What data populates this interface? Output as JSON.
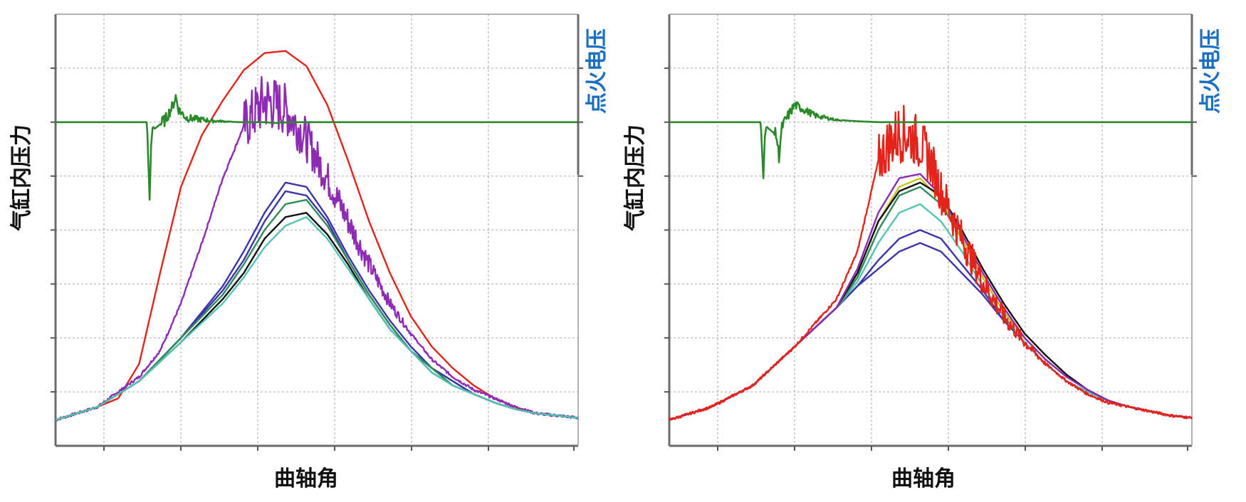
{
  "chart_data": [
    {
      "type": "line",
      "panel": "left",
      "xlabel": "曲轴角",
      "ylabel": "气缸内压力",
      "y2label": "点火电压",
      "grid": true,
      "xlim": [
        0,
        100
      ],
      "ylim": [
        0,
        100
      ],
      "colors": {
        "pressure_red": "#e3241b",
        "pressure_purple": "#8e2bb5",
        "pressure_blue": "#3a35a8",
        "pressure_green": "#2e8b57",
        "pressure_teal": "#52c4b4",
        "pressure_black": "#111111",
        "ignition_voltage": "#2a8a2a"
      },
      "series": [
        {
          "color": "pressure_red",
          "x": [
            0,
            8,
            12,
            16,
            20,
            24,
            28,
            32,
            36,
            40,
            44,
            48,
            52,
            56,
            60,
            64,
            68,
            72,
            76,
            80,
            84,
            88,
            92,
            96,
            100
          ],
          "y": [
            6,
            9,
            11,
            19,
            40,
            60,
            72,
            80,
            87,
            91,
            91.5,
            88,
            79,
            66,
            52,
            40,
            30,
            23,
            18,
            14,
            11,
            9,
            7.5,
            7,
            6.5
          ]
        },
        {
          "color": "pressure_purple",
          "noisy_peak": true,
          "x": [
            0,
            8,
            16,
            20,
            24,
            28,
            32,
            36,
            40,
            44,
            48,
            52,
            56,
            60,
            64,
            68,
            72,
            76,
            80,
            84,
            88,
            92,
            96,
            100
          ],
          "y": [
            6,
            9,
            16,
            22,
            33,
            47,
            62,
            74,
            80,
            78,
            71,
            62,
            52,
            42,
            33,
            26,
            20,
            16,
            13,
            11,
            9,
            7.5,
            7,
            6.5
          ]
        },
        {
          "color": "pressure_blue",
          "x": [
            0,
            8,
            16,
            24,
            32,
            36,
            40,
            44,
            48,
            52,
            56,
            60,
            64,
            68,
            72,
            76,
            80,
            84,
            88,
            92,
            96,
            100
          ],
          "y": [
            6,
            9,
            15,
            25,
            37,
            45,
            54,
            61,
            60,
            53,
            44,
            36,
            29,
            23,
            18,
            15,
            12,
            10,
            8.5,
            7.5,
            7,
            6.5
          ]
        },
        {
          "color": "pressure_blue",
          "x": [
            0,
            8,
            16,
            24,
            32,
            36,
            40,
            44,
            48,
            52,
            56,
            60,
            64,
            68,
            72,
            76,
            80,
            84,
            88,
            92,
            96,
            100
          ],
          "y": [
            6,
            9,
            15,
            25,
            36,
            43,
            52,
            59,
            58,
            52,
            43,
            35,
            28,
            22,
            18,
            15,
            12,
            10,
            8.5,
            7.5,
            7,
            6.5
          ]
        },
        {
          "color": "pressure_green",
          "x": [
            0,
            8,
            16,
            24,
            32,
            36,
            40,
            44,
            48,
            52,
            56,
            60,
            64,
            68,
            72,
            76,
            80,
            84,
            88,
            92,
            96,
            100
          ],
          "y": [
            6,
            9,
            15,
            25,
            35,
            42,
            50,
            56,
            57,
            51,
            43,
            35,
            28,
            22,
            18,
            14,
            12,
            10,
            8.5,
            7.5,
            7,
            6.5
          ]
        },
        {
          "color": "pressure_black",
          "x": [
            0,
            8,
            16,
            24,
            32,
            36,
            40,
            44,
            48,
            52,
            56,
            60,
            64,
            68,
            72,
            76,
            80,
            84,
            88,
            92,
            96,
            100
          ],
          "y": [
            6,
            9,
            15,
            24,
            34,
            40,
            48,
            53,
            54,
            49,
            42,
            34,
            27,
            22,
            17,
            14,
            12,
            10,
            8.5,
            7.5,
            7,
            6.5
          ]
        },
        {
          "color": "pressure_teal",
          "x": [
            0,
            8,
            16,
            24,
            32,
            36,
            40,
            44,
            48,
            52,
            56,
            60,
            64,
            68,
            72,
            76,
            80,
            84,
            88,
            92,
            96,
            100
          ],
          "y": [
            6,
            9,
            15,
            24,
            33,
            39,
            46,
            51,
            53,
            48,
            41,
            34,
            27,
            22,
            17,
            14,
            12,
            10,
            8.5,
            7.5,
            7,
            6.5
          ]
        },
        {
          "color": "ignition_voltage",
          "ignition": true,
          "x": [
            0,
            17.5,
            18,
            18.3,
            18.6,
            19,
            21,
            22.5,
            23,
            23.5,
            25,
            30,
            35,
            40,
            42,
            45,
            60,
            80,
            100
          ],
          "y": [
            75,
            75,
            57,
            70,
            74,
            73.5,
            75.5,
            79,
            81,
            78,
            76,
            75.3,
            75,
            75,
            74.8,
            75,
            75,
            75,
            75
          ]
        }
      ]
    },
    {
      "type": "line",
      "panel": "right",
      "xlabel": "曲轴角",
      "ylabel": "气缸内压力",
      "y2label": "点火电压",
      "grid": true,
      "xlim": [
        0,
        100
      ],
      "ylim": [
        0,
        100
      ],
      "colors": {
        "pressure_red": "#e3241b",
        "pressure_purple": "#8e2bb5",
        "pressure_blue": "#3a35a8",
        "pressure_green": "#2e8b57",
        "pressure_teal": "#52c4b4",
        "pressure_yellow": "#c9c418",
        "pressure_black": "#111111",
        "ignition_voltage": "#2a8a2a"
      },
      "series": [
        {
          "color": "pressure_blue",
          "x": [
            0,
            8,
            16,
            24,
            32,
            36,
            40,
            44,
            48,
            52,
            56,
            60,
            64,
            68,
            72,
            76,
            80,
            84,
            88,
            92,
            96,
            100
          ],
          "y": [
            6,
            9,
            14,
            23,
            32,
            37,
            41,
            45,
            47,
            45,
            40,
            35,
            29,
            24,
            19,
            15,
            12.5,
            10.5,
            9,
            8,
            7,
            6.5
          ]
        },
        {
          "color": "pressure_blue",
          "x": [
            0,
            8,
            16,
            24,
            32,
            36,
            40,
            44,
            48,
            52,
            56,
            60,
            64,
            68,
            72,
            76,
            80,
            84,
            88,
            92,
            96,
            100
          ],
          "y": [
            6,
            9,
            14,
            23,
            32,
            37,
            43,
            48,
            50,
            48,
            42,
            36,
            29,
            24,
            19,
            15,
            12.5,
            10.5,
            9,
            8,
            7,
            6.5
          ]
        },
        {
          "color": "pressure_teal",
          "x": [
            0,
            8,
            16,
            24,
            32,
            36,
            40,
            44,
            48,
            52,
            56,
            60,
            64,
            68,
            72,
            76,
            80,
            84,
            88,
            92,
            96,
            100
          ],
          "y": [
            6,
            9,
            14,
            23,
            32,
            38,
            47,
            54,
            56,
            52,
            45,
            37,
            30,
            24,
            19,
            15,
            12.5,
            10.5,
            9,
            8,
            7,
            6.5
          ]
        },
        {
          "color": "pressure_green",
          "x": [
            0,
            8,
            16,
            24,
            32,
            36,
            40,
            44,
            48,
            52,
            56,
            60,
            64,
            68,
            72,
            76,
            80,
            84,
            88,
            92,
            96,
            100
          ],
          "y": [
            6,
            9,
            14,
            23,
            32,
            39,
            50,
            58,
            60,
            56,
            48,
            39,
            31,
            25,
            20,
            16,
            13,
            10.5,
            9,
            8,
            7,
            6.5
          ]
        },
        {
          "color": "pressure_yellow",
          "x": [
            0,
            8,
            16,
            24,
            32,
            36,
            40,
            44,
            48,
            52,
            56,
            60,
            64,
            68,
            72,
            76,
            80,
            84,
            88,
            92,
            96,
            100
          ],
          "y": [
            6,
            9,
            14,
            23,
            32,
            40,
            52,
            60,
            62,
            57,
            48,
            39,
            31,
            25,
            20,
            16,
            13,
            10.5,
            9,
            8,
            7,
            6.5
          ]
        },
        {
          "color": "pressure_black",
          "x": [
            0,
            8,
            16,
            24,
            32,
            36,
            40,
            44,
            48,
            52,
            56,
            60,
            64,
            68,
            72,
            76,
            80,
            84,
            88,
            92,
            96,
            100
          ],
          "y": [
            6,
            9,
            14,
            23,
            32,
            40,
            52,
            59,
            61,
            58,
            50,
            41,
            33,
            26,
            21,
            16.5,
            13,
            10.5,
            9,
            8,
            7,
            6.5
          ]
        },
        {
          "color": "pressure_purple",
          "x": [
            0,
            8,
            16,
            24,
            32,
            36,
            40,
            44,
            48,
            52,
            56,
            60,
            64,
            68,
            72,
            76,
            80,
            84,
            88,
            92,
            96,
            100
          ],
          "y": [
            6,
            9,
            14,
            23,
            32,
            41,
            54,
            62,
            63,
            58,
            49,
            40,
            32,
            25,
            20,
            16,
            13,
            10.5,
            9,
            8,
            7,
            6.5
          ]
        },
        {
          "color": "pressure_red",
          "noisy_peak": true,
          "x": [
            0,
            8,
            16,
            24,
            32,
            36,
            40,
            42,
            44,
            46,
            48,
            50,
            52,
            56,
            60,
            64,
            68,
            72,
            76,
            80,
            84,
            88,
            92,
            96,
            100
          ],
          "y": [
            6,
            9,
            14,
            23,
            34,
            45,
            66,
            70,
            72.5,
            72,
            70,
            66,
            59,
            48,
            38,
            30,
            24,
            19,
            15,
            12,
            10,
            9,
            8,
            7,
            6.5
          ]
        },
        {
          "color": "ignition_voltage",
          "ignition": true,
          "x": [
            0,
            17.5,
            18,
            18.3,
            18.6,
            19,
            20.5,
            21,
            21.3,
            21.6,
            22.5,
            24,
            28,
            32,
            36,
            40,
            48,
            60,
            80,
            100
          ],
          "y": [
            75,
            75,
            62,
            72,
            74,
            73.5,
            72,
            67,
            71,
            74,
            76,
            79,
            76.5,
            75.5,
            75.2,
            75,
            75,
            75,
            75,
            75
          ]
        }
      ]
    }
  ]
}
